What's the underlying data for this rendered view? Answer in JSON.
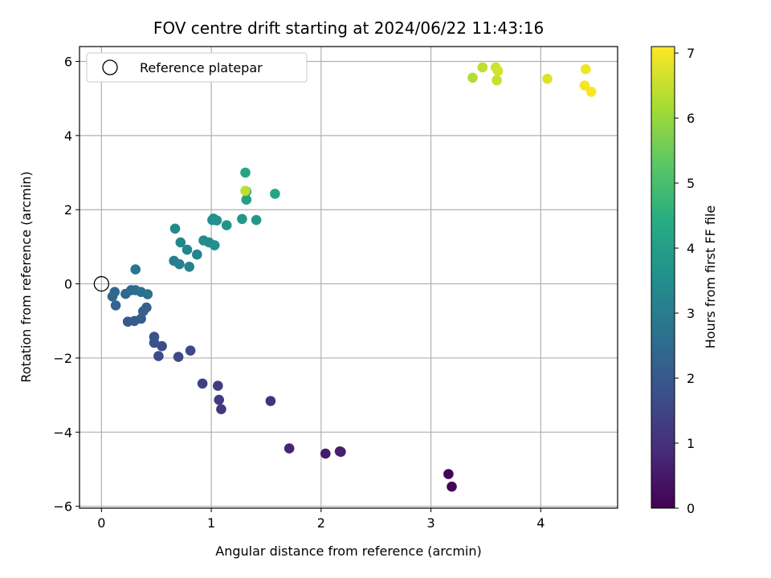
{
  "chart_data": {
    "type": "scatter",
    "title": "FOV centre drift starting at 2024/06/22 11:43:16",
    "xlabel": "Angular distance from reference (arcmin)",
    "ylabel": "Rotation from reference (arcmin)",
    "xlim": [
      -0.2,
      4.7
    ],
    "ylim": [
      -6.05,
      6.4
    ],
    "xticks": [
      0,
      1,
      2,
      3,
      4
    ],
    "yticks": [
      -6,
      -4,
      -2,
      0,
      2,
      4,
      6
    ],
    "xtick_labels": [
      "0",
      "1",
      "2",
      "3",
      "4"
    ],
    "ytick_labels": [
      "−6",
      "−4",
      "−2",
      "0",
      "2",
      "4",
      "6"
    ],
    "grid": true,
    "legend": {
      "position": "top-left",
      "entries": [
        "Reference platepar"
      ]
    },
    "reference_point": {
      "x": 0,
      "y": 0
    },
    "colorbar": {
      "label": "Hours from first FF file",
      "min": 0,
      "max": 7.1,
      "ticks": [
        0,
        1,
        2,
        3,
        4,
        5,
        6,
        7
      ],
      "tick_labels": [
        "0",
        "1",
        "2",
        "3",
        "4",
        "5",
        "6",
        "7"
      ],
      "colormap": "viridis"
    },
    "points": [
      {
        "x": 3.16,
        "y": -5.13,
        "t": 0.05
      },
      {
        "x": 3.19,
        "y": -5.47,
        "t": 0.1
      },
      {
        "x": 2.04,
        "y": -4.58,
        "t": 0.5
      },
      {
        "x": 2.17,
        "y": -4.52,
        "t": 0.6
      },
      {
        "x": 2.18,
        "y": -4.53,
        "t": 0.65
      },
      {
        "x": 1.71,
        "y": -4.44,
        "t": 0.75
      },
      {
        "x": 1.54,
        "y": -3.16,
        "t": 1.0
      },
      {
        "x": 1.09,
        "y": -3.38,
        "t": 1.2
      },
      {
        "x": 1.07,
        "y": -3.13,
        "t": 1.25
      },
      {
        "x": 1.06,
        "y": -2.75,
        "t": 1.3
      },
      {
        "x": 0.92,
        "y": -2.69,
        "t": 1.4
      },
      {
        "x": 0.81,
        "y": -1.8,
        "t": 1.55
      },
      {
        "x": 0.7,
        "y": -1.97,
        "t": 1.6
      },
      {
        "x": 0.52,
        "y": -1.95,
        "t": 1.65
      },
      {
        "x": 0.55,
        "y": -1.68,
        "t": 1.7
      },
      {
        "x": 0.48,
        "y": -1.59,
        "t": 1.75
      },
      {
        "x": 0.48,
        "y": -1.43,
        "t": 1.8
      },
      {
        "x": 0.24,
        "y": -1.02,
        "t": 2.0
      },
      {
        "x": 0.3,
        "y": -1.0,
        "t": 2.05
      },
      {
        "x": 0.36,
        "y": -0.94,
        "t": 2.1
      },
      {
        "x": 0.38,
        "y": -0.74,
        "t": 2.15
      },
      {
        "x": 0.41,
        "y": -0.64,
        "t": 2.2
      },
      {
        "x": 0.13,
        "y": -0.58,
        "t": 2.3
      },
      {
        "x": 0.1,
        "y": -0.34,
        "t": 2.35
      },
      {
        "x": 0.12,
        "y": -0.22,
        "t": 2.4
      },
      {
        "x": 0.22,
        "y": -0.27,
        "t": 2.45
      },
      {
        "x": 0.27,
        "y": -0.17,
        "t": 2.5
      },
      {
        "x": 0.31,
        "y": -0.17,
        "t": 2.55
      },
      {
        "x": 0.36,
        "y": -0.22,
        "t": 2.6
      },
      {
        "x": 0.42,
        "y": -0.28,
        "t": 2.65
      },
      {
        "x": 0.31,
        "y": 0.39,
        "t": 2.75
      },
      {
        "x": 0.66,
        "y": 0.62,
        "t": 3.05
      },
      {
        "x": 0.71,
        "y": 0.53,
        "t": 3.1
      },
      {
        "x": 0.8,
        "y": 0.46,
        "t": 3.15
      },
      {
        "x": 0.87,
        "y": 0.79,
        "t": 3.2
      },
      {
        "x": 0.78,
        "y": 0.92,
        "t": 3.25
      },
      {
        "x": 0.72,
        "y": 1.12,
        "t": 3.3
      },
      {
        "x": 0.67,
        "y": 1.49,
        "t": 3.35
      },
      {
        "x": 0.93,
        "y": 1.17,
        "t": 3.4
      },
      {
        "x": 0.98,
        "y": 1.12,
        "t": 3.45
      },
      {
        "x": 1.03,
        "y": 1.04,
        "t": 3.5
      },
      {
        "x": 1.01,
        "y": 1.72,
        "t": 3.55
      },
      {
        "x": 1.02,
        "y": 1.76,
        "t": 3.6
      },
      {
        "x": 1.05,
        "y": 1.71,
        "t": 3.65
      },
      {
        "x": 1.14,
        "y": 1.58,
        "t": 3.7
      },
      {
        "x": 1.28,
        "y": 1.75,
        "t": 3.75
      },
      {
        "x": 1.41,
        "y": 1.72,
        "t": 3.8
      },
      {
        "x": 1.32,
        "y": 2.27,
        "t": 4.05
      },
      {
        "x": 1.32,
        "y": 2.49,
        "t": 4.1
      },
      {
        "x": 1.31,
        "y": 3.0,
        "t": 4.15
      },
      {
        "x": 1.58,
        "y": 2.43,
        "t": 4.2
      },
      {
        "x": 1.31,
        "y": 2.51,
        "t": 6.4
      },
      {
        "x": 3.38,
        "y": 5.56,
        "t": 6.3
      },
      {
        "x": 3.47,
        "y": 5.84,
        "t": 6.45
      },
      {
        "x": 3.59,
        "y": 5.84,
        "t": 6.6
      },
      {
        "x": 3.61,
        "y": 5.74,
        "t": 6.65
      },
      {
        "x": 3.6,
        "y": 5.49,
        "t": 6.5
      },
      {
        "x": 4.06,
        "y": 5.53,
        "t": 6.75
      },
      {
        "x": 4.41,
        "y": 5.79,
        "t": 6.95
      },
      {
        "x": 4.4,
        "y": 5.35,
        "t": 7.0
      },
      {
        "x": 4.46,
        "y": 5.18,
        "t": 7.05
      }
    ]
  }
}
